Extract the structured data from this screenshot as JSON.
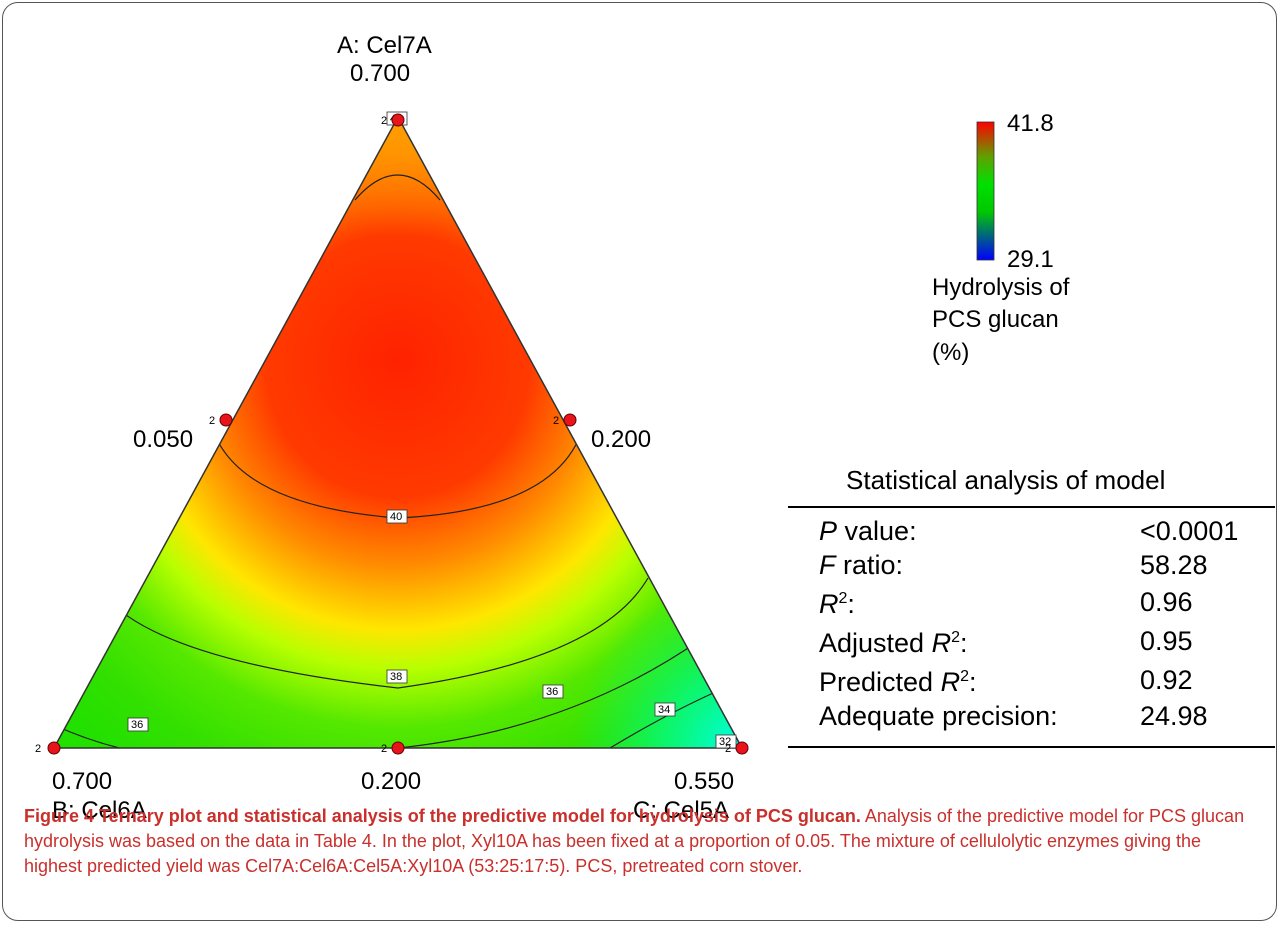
{
  "chart_data": {
    "type": "heatmap",
    "subtype": "ternary-contour",
    "vertices": {
      "top": {
        "name": "A: Cel7A",
        "max": "0.700"
      },
      "left": {
        "name": "B: Cel6A",
        "max": "0.700"
      },
      "right": {
        "name": "C: Cel5A",
        "max": "0.550"
      }
    },
    "edge_labels": {
      "left_mid": "0.050",
      "right_mid": "0.200",
      "bottom_mid": "0.200"
    },
    "colorbar": {
      "max": "41.8",
      "min": "29.1",
      "colors": [
        "#0000ff",
        "#00ff00",
        "#ffff00",
        "#ff0000"
      ]
    },
    "legend_title": [
      "Hydrolysis of",
      "PCS glucan",
      "(%)"
    ],
    "contour_levels": [
      {
        "value": "40"
      },
      {
        "value": "40"
      },
      {
        "value": "38"
      },
      {
        "value": "36"
      },
      {
        "value": "36"
      },
      {
        "value": "34"
      },
      {
        "value": "32"
      }
    ],
    "design_points": [
      {
        "position": "top-vertex",
        "replicates": "2"
      },
      {
        "position": "left-edge-mid",
        "replicates": "2"
      },
      {
        "position": "right-edge-mid",
        "replicates": "2"
      },
      {
        "position": "left-vertex",
        "replicates": "2"
      },
      {
        "position": "bottom-edge-mid",
        "replicates": "2"
      },
      {
        "position": "right-vertex",
        "replicates": "2"
      }
    ],
    "point_color": "#e8141b"
  },
  "stats": {
    "title": "Statistical analysis of model",
    "rows": [
      {
        "label": "P value:",
        "value": "<0.0001"
      },
      {
        "label": "F ratio:",
        "value": "58.28"
      },
      {
        "label": "R2:",
        "value": "0.96"
      },
      {
        "label": "Adjusted R2:",
        "value": "0.95"
      },
      {
        "label": "Predicted R2:",
        "value": "0.92"
      },
      {
        "label": "Adequate precision:",
        "value": "24.98"
      }
    ]
  },
  "caption": {
    "title": "Figure 4 Ternary plot and statistical analysis of the predictive model for hydrolysis of PCS glucan.",
    "body": "Analysis of the predictive model for PCS glucan hydrolysis was based on the data in Table 4. In the plot, Xyl10A has been fixed at a proportion of 0.05. The mixture of cellulolytic enzymes giving the highest predicted yield was Cel7A:Cel6A:Cel5A:Xyl10A (53:25:17:5). PCS, pretreated corn stover."
  }
}
